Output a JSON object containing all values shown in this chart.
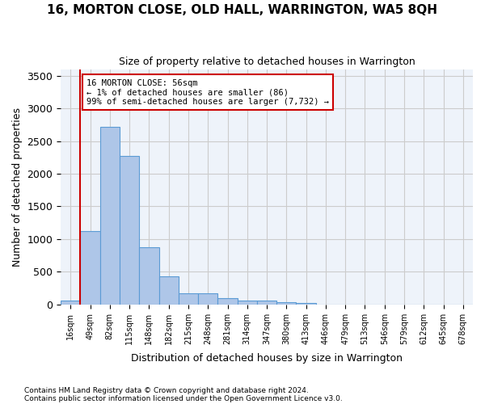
{
  "title": "16, MORTON CLOSE, OLD HALL, WARRINGTON, WA5 8QH",
  "subtitle": "Size of property relative to detached houses in Warrington",
  "xlabel": "Distribution of detached houses by size in Warrington",
  "ylabel": "Number of detached properties",
  "bar_values": [
    55,
    1120,
    2720,
    2270,
    870,
    430,
    170,
    165,
    95,
    65,
    55,
    35,
    25,
    0,
    0,
    0,
    0,
    0,
    0,
    0,
    0
  ],
  "bar_labels": [
    "16sqm",
    "49sqm",
    "82sqm",
    "115sqm",
    "148sqm",
    "182sqm",
    "215sqm",
    "248sqm",
    "281sqm",
    "314sqm",
    "347sqm",
    "380sqm",
    "413sqm",
    "446sqm",
    "479sqm",
    "513sqm",
    "546sqm",
    "579sqm",
    "612sqm",
    "645sqm",
    "678sqm"
  ],
  "bar_color": "#aec6e8",
  "bar_edge_color": "#5b9bd5",
  "bar_edge_width": 0.8,
  "property_line_color": "#cc0000",
  "annotation_box_text": "16 MORTON CLOSE: 56sqm\n← 1% of detached houses are smaller (86)\n99% of semi-detached houses are larger (7,732) →",
  "annotation_box_color": "#cc0000",
  "annotation_box_bg": "#ffffff",
  "ylim": [
    0,
    3600
  ],
  "yticks": [
    0,
    500,
    1000,
    1500,
    2000,
    2500,
    3000,
    3500
  ],
  "grid_color": "#cccccc",
  "bg_color": "#eef3fa",
  "footnote1": "Contains HM Land Registry data © Crown copyright and database right 2024.",
  "footnote2": "Contains public sector information licensed under the Open Government Licence v3.0."
}
